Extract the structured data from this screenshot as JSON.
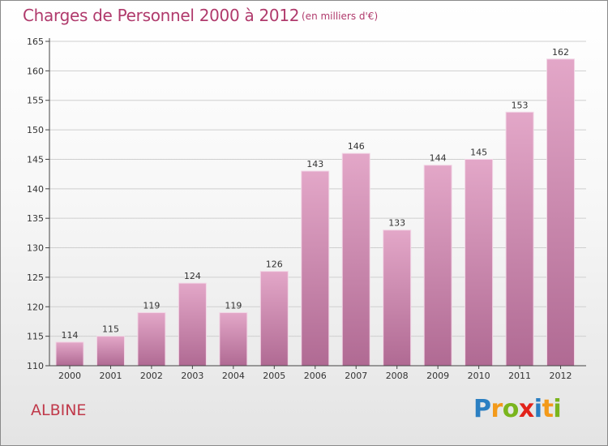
{
  "header": {
    "title": "Charges de Personnel 2000 à 2012",
    "subtitle": "(en milliers d'€)"
  },
  "footer": {
    "commune": "ALBINE",
    "logo": {
      "letters": [
        "P",
        "r",
        "o",
        "x",
        "i",
        "t",
        "i"
      ],
      "colors": [
        "#2b7fc2",
        "#f39a1a",
        "#7ab51d",
        "#e2231a",
        "#2b7fc2",
        "#f39a1a",
        "#7ab51d"
      ]
    }
  },
  "colors": {
    "title": "#b03a6c",
    "bar_fill_top": "#e3a7c8",
    "bar_fill_bottom": "#b06a93",
    "bar_stroke": "#f2d6e6",
    "axis": "#444444",
    "gridline": "#cfcfcf"
  },
  "chart_data": {
    "type": "bar",
    "categories": [
      "2000",
      "2001",
      "2002",
      "2003",
      "2004",
      "2005",
      "2006",
      "2007",
      "2008",
      "2009",
      "2010",
      "2011",
      "2012"
    ],
    "series": [
      {
        "values": [
          114,
          115,
          119,
          124,
          119,
          126,
          143,
          146,
          133,
          144,
          145,
          153,
          162
        ]
      }
    ],
    "title": "Charges de Personnel 2000 à 2012",
    "subtitle": "(en milliers d'€)",
    "xlabel": "",
    "ylabel": "",
    "ylim": [
      110,
      165
    ],
    "yticks": [
      110,
      115,
      120,
      125,
      130,
      135,
      140,
      145,
      150,
      155,
      160,
      165
    ],
    "grid": true,
    "legend": "none"
  }
}
